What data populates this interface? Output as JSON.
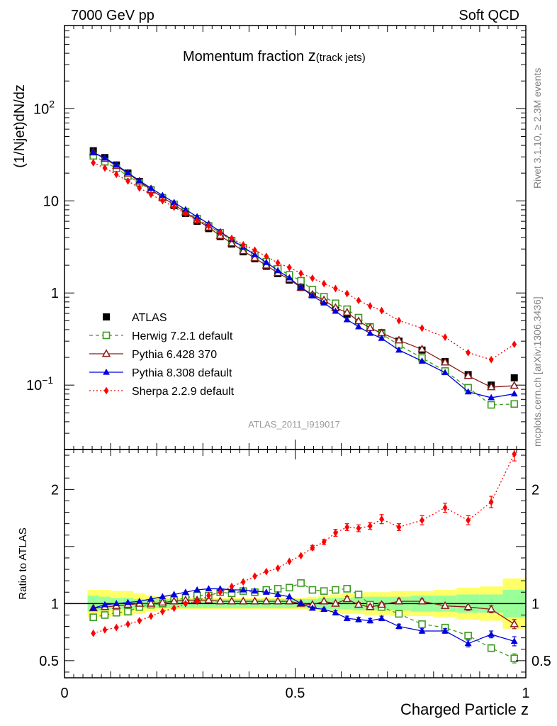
{
  "header": {
    "left": "7000 GeV pp",
    "right": "Soft QCD",
    "title_main": "Momentum fraction ",
    "title_var": "z",
    "title_sub": "(track jets)",
    "analysis_id": "ATLAS_2011_I919017",
    "side_rivet": "Rivet 3.1.10, ≥ 2.3M events",
    "side_mcplots": "mcplots.cern.ch [arXiv:1306.3436]"
  },
  "axes": {
    "ylabel_main": "(1/Njet)dN/dz",
    "ylabel_ratio": "Ratio to ATLAS",
    "xlabel": "Charged Particle z",
    "x_range": [
      0,
      1
    ],
    "y_main_range": [
      0.02,
      800
    ],
    "y_main_scale": "log",
    "y_ratio_range": [
      0.35,
      2.35
    ],
    "x_ticks": [
      {
        "v": 0,
        "label": "0"
      },
      {
        "v": 0.5,
        "label": "0.5"
      },
      {
        "v": 1,
        "label": "1"
      }
    ],
    "y_main_ticks": [
      {
        "v": 0.1,
        "base": "10",
        "exp": "−1"
      },
      {
        "v": 1,
        "base": "1",
        "exp": ""
      },
      {
        "v": 10,
        "base": "10",
        "exp": ""
      },
      {
        "v": 100,
        "base": "10",
        "exp": "2"
      }
    ],
    "y_ratio_ticks": [
      {
        "v": 0.5,
        "label": "0.5"
      },
      {
        "v": 1,
        "label": "1"
      },
      {
        "v": 2,
        "label": "2"
      }
    ]
  },
  "legend": {
    "placement": "lower-left",
    "entries": [
      "ATLAS",
      "Herwig 7.2.1 default",
      "Pythia 6.428 370",
      "Pythia 8.308 default",
      "Sherpa 2.2.9 default"
    ]
  },
  "colors": {
    "data": "#000000",
    "herwig": "#3c9a1e",
    "pythia6": "#8b1a1a",
    "pythia8": "#0000dd",
    "sherpa": "#ff0000",
    "band_inner": "#99ff99",
    "band_outer": "#ffff66"
  },
  "chart_data": {
    "type": "line",
    "title": "Momentum fraction z(track jets)",
    "xlabel": "Charged Particle z",
    "ylabel": "(1/Njet)dN/dz",
    "ylabel_ratio": "Ratio to ATLAS",
    "log_y": true,
    "x": [
      0.0625,
      0.0875,
      0.1125,
      0.1375,
      0.1625,
      0.1875,
      0.2125,
      0.2375,
      0.2625,
      0.2875,
      0.3125,
      0.3375,
      0.3625,
      0.3875,
      0.4125,
      0.4375,
      0.4625,
      0.4875,
      0.5125,
      0.5375,
      0.5625,
      0.5875,
      0.6125,
      0.6375,
      0.6625,
      0.6875,
      0.725,
      0.775,
      0.825,
      0.875,
      0.925,
      0.975
    ],
    "data": [
      35,
      29.5,
      24.5,
      20,
      16.2,
      13.2,
      10.8,
      8.9,
      7.3,
      6.0,
      5.0,
      4.1,
      3.4,
      2.8,
      2.35,
      1.95,
      1.62,
      1.38,
      1.15,
      0.97,
      0.82,
      0.69,
      0.59,
      0.5,
      0.43,
      0.37,
      0.3,
      0.24,
      0.18,
      0.13,
      0.1,
      0.12
    ],
    "band_inner": [
      0.07,
      0.06,
      0.05,
      0.05,
      0.04,
      0.04,
      0.04,
      0.04,
      0.04,
      0.04,
      0.04,
      0.04,
      0.04,
      0.04,
      0.04,
      0.04,
      0.04,
      0.04,
      0.04,
      0.04,
      0.05,
      0.05,
      0.05,
      0.06,
      0.06,
      0.06,
      0.06,
      0.07,
      0.07,
      0.08,
      0.08,
      0.12
    ],
    "band_outer": [
      0.12,
      0.12,
      0.11,
      0.11,
      0.09,
      0.07,
      0.06,
      0.05,
      0.05,
      0.05,
      0.05,
      0.05,
      0.05,
      0.05,
      0.05,
      0.05,
      0.05,
      0.05,
      0.05,
      0.06,
      0.07,
      0.08,
      0.09,
      0.09,
      0.1,
      0.1,
      0.11,
      0.11,
      0.12,
      0.14,
      0.15,
      0.22
    ],
    "series": [
      {
        "name": "Herwig 7.2.1 default",
        "marker": "open-square",
        "line": "dashed",
        "color": "#3c9a1e",
        "ratio": [
          0.88,
          0.9,
          0.92,
          0.93,
          0.97,
          0.99,
          1.0,
          1.03,
          1.05,
          1.07,
          1.07,
          1.1,
          1.09,
          1.11,
          1.1,
          1.12,
          1.13,
          1.14,
          1.18,
          1.12,
          1.11,
          1.12,
          1.13,
          1.08,
          0.99,
          0.97,
          0.91,
          0.82,
          0.79,
          0.72,
          0.61,
          0.52
        ],
        "err": [
          0,
          0,
          0,
          0,
          0,
          0,
          0,
          0,
          0,
          0,
          0,
          0,
          0,
          0,
          0,
          0,
          0,
          0,
          0,
          0,
          0,
          0,
          0,
          0,
          0,
          0,
          0,
          0.02,
          0.02,
          0.03,
          0.03,
          0.04
        ]
      },
      {
        "name": "Pythia 6.428 370",
        "marker": "open-triangle",
        "line": "solid",
        "color": "#8b1a1a",
        "ratio": [
          0.96,
          0.97,
          0.98,
          0.99,
          1.0,
          1.0,
          1.01,
          1.02,
          1.03,
          1.03,
          1.03,
          1.02,
          1.02,
          1.02,
          1.02,
          1.02,
          1.02,
          1.02,
          1.0,
          0.99,
          1.02,
          1.0,
          1.04,
          0.99,
          0.97,
          0.99,
          1.02,
          1.02,
          0.98,
          0.97,
          0.95,
          0.82
        ],
        "err": [
          0,
          0,
          0,
          0,
          0,
          0,
          0,
          0,
          0,
          0,
          0,
          0,
          0,
          0,
          0,
          0,
          0,
          0,
          0,
          0,
          0,
          0,
          0.02,
          0.02,
          0.02,
          0.02,
          0.02,
          0.02,
          0.02,
          0.03,
          0.03,
          0.04
        ]
      },
      {
        "name": "Pythia 8.308 default",
        "marker": "filled-triangle",
        "line": "solid",
        "color": "#0000dd",
        "ratio": [
          0.96,
          0.99,
          1.0,
          1.01,
          1.02,
          1.04,
          1.06,
          1.08,
          1.1,
          1.12,
          1.13,
          1.13,
          1.12,
          1.12,
          1.11,
          1.1,
          1.08,
          1.06,
          1.0,
          0.96,
          0.95,
          0.92,
          0.87,
          0.86,
          0.85,
          0.87,
          0.8,
          0.76,
          0.76,
          0.65,
          0.73,
          0.67
        ],
        "err": [
          0,
          0,
          0,
          0,
          0,
          0,
          0,
          0,
          0,
          0,
          0,
          0,
          0,
          0,
          0,
          0,
          0,
          0,
          0,
          0.01,
          0.01,
          0.02,
          0.02,
          0.02,
          0.02,
          0.02,
          0.02,
          0.02,
          0.02,
          0.03,
          0.03,
          0.04
        ]
      },
      {
        "name": "Sherpa 2.2.9 default",
        "marker": "filled-diamond",
        "line": "dotted",
        "color": "#ff0000",
        "ratio": [
          0.74,
          0.77,
          0.79,
          0.82,
          0.85,
          0.89,
          0.93,
          0.96,
          1.0,
          1.02,
          1.07,
          1.1,
          1.15,
          1.19,
          1.24,
          1.28,
          1.31,
          1.37,
          1.42,
          1.49,
          1.54,
          1.62,
          1.67,
          1.66,
          1.68,
          1.74,
          1.67,
          1.73,
          1.84,
          1.73,
          1.89,
          2.31
        ],
        "err": [
          0,
          0,
          0,
          0,
          0,
          0,
          0,
          0,
          0,
          0,
          0,
          0,
          0,
          0,
          0,
          0,
          0,
          0,
          0,
          0.02,
          0.02,
          0.03,
          0.03,
          0.03,
          0.03,
          0.04,
          0.03,
          0.04,
          0.04,
          0.04,
          0.05,
          0.06
        ]
      }
    ]
  }
}
